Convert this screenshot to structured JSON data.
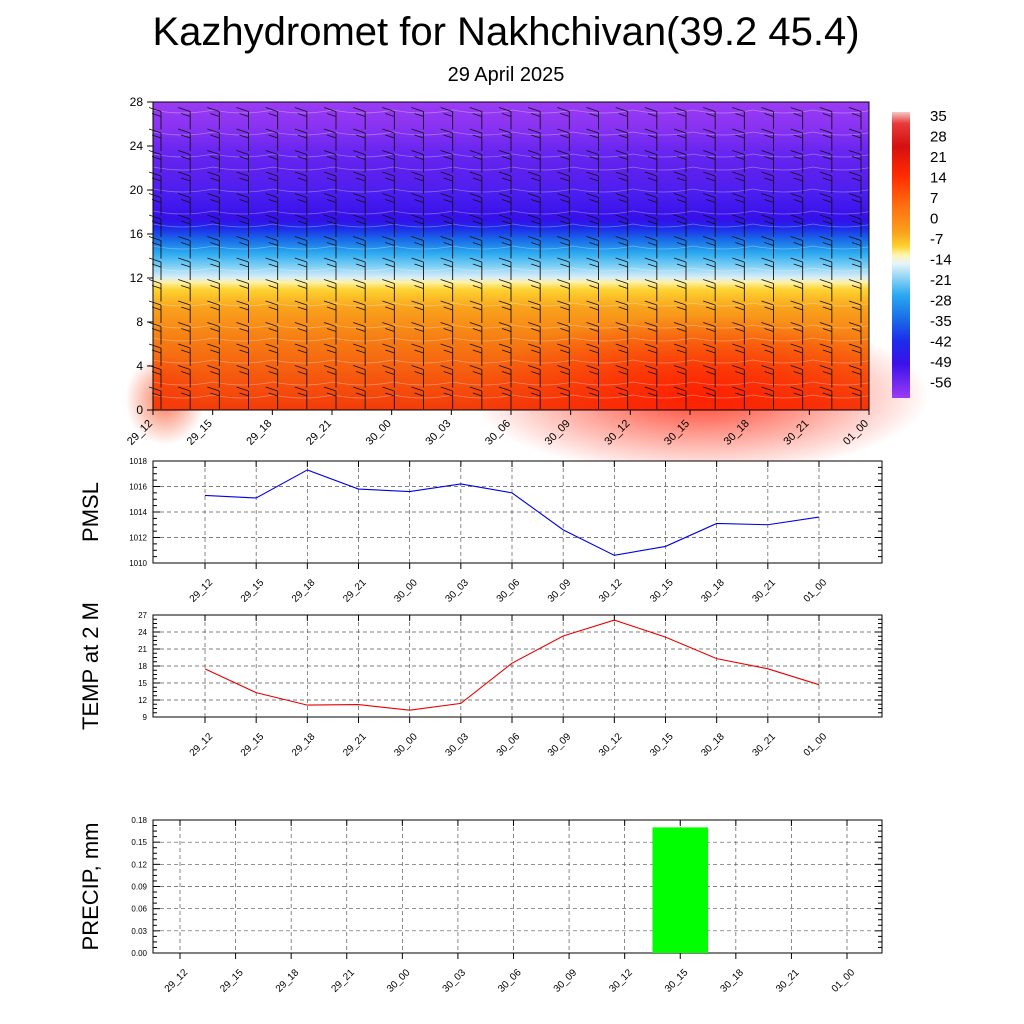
{
  "title": "Kazhydromet for Nakhchivan(39.2 45.4)",
  "subtitle": "29 April 2025",
  "colors": {
    "pmsl_line": "#0000e6",
    "temp_line": "#e60000",
    "precip_bar": "#00ff00",
    "grid": "#555555"
  },
  "chart_data": [
    {
      "type": "heatmap",
      "title": "",
      "xlabel": "",
      "ylabel": "",
      "x_tick_labels": [
        "29_12",
        "29_15",
        "29_18",
        "29_21",
        "30_00",
        "30_03",
        "30_06",
        "30_09",
        "30_12",
        "30_15",
        "30_18",
        "30_21",
        "01_00"
      ],
      "y_ticks": [
        0,
        4,
        8,
        12,
        16,
        20,
        24,
        28
      ],
      "ylim": [
        0,
        28
      ],
      "colorbar_labels": [
        "35",
        "28",
        "21",
        "14",
        "7",
        "0",
        "-7",
        "-14",
        "-21",
        "-28",
        "-35",
        "-42",
        "-49",
        "-56"
      ],
      "overlay": "wind barbs"
    },
    {
      "type": "line",
      "ylabel": "PMSL",
      "x": [
        "29_12",
        "29_15",
        "29_18",
        "29_21",
        "30_00",
        "30_03",
        "30_06",
        "30_09",
        "30_12",
        "30_15",
        "30_18",
        "30_21",
        "01_00"
      ],
      "values": [
        1015.3,
        1015.1,
        1017.3,
        1015.8,
        1015.6,
        1016.2,
        1015.5,
        1012.6,
        1010.6,
        1011.3,
        1013.1,
        1013.0,
        1013.6
      ],
      "ylim": [
        1010,
        1018
      ],
      "y_ticks": [
        1010,
        1012,
        1014,
        1016,
        1018
      ],
      "grid": true
    },
    {
      "type": "line",
      "ylabel": "TEMP at 2 M",
      "x": [
        "29_12",
        "29_15",
        "29_18",
        "29_21",
        "30_00",
        "30_03",
        "30_06",
        "30_09",
        "30_12",
        "30_15",
        "30_18",
        "30_21",
        "01_00"
      ],
      "values": [
        17.5,
        13.3,
        11.1,
        11.2,
        10.2,
        11.4,
        18.5,
        23.3,
        26.1,
        23.1,
        19.3,
        17.5,
        14.7
      ],
      "ylim": [
        9,
        27
      ],
      "y_ticks": [
        9,
        12,
        15,
        18,
        21,
        24,
        27
      ],
      "grid": true
    },
    {
      "type": "bar",
      "ylabel": "PRECIP, mm",
      "categories": [
        "29_12",
        "29_15",
        "29_18",
        "29_21",
        "30_00",
        "30_03",
        "30_06",
        "30_09",
        "30_12",
        "30_15",
        "30_18",
        "30_21",
        "01_00"
      ],
      "values": [
        0,
        0,
        0,
        0,
        0,
        0,
        0,
        0,
        0,
        0.17,
        0,
        0,
        0
      ],
      "ylim": [
        0,
        0.18
      ],
      "y_tick_labels": [
        "0.00",
        "0.03",
        "0.06",
        "0.09",
        "0.12",
        "0.15",
        "0.18"
      ],
      "grid": true
    }
  ]
}
